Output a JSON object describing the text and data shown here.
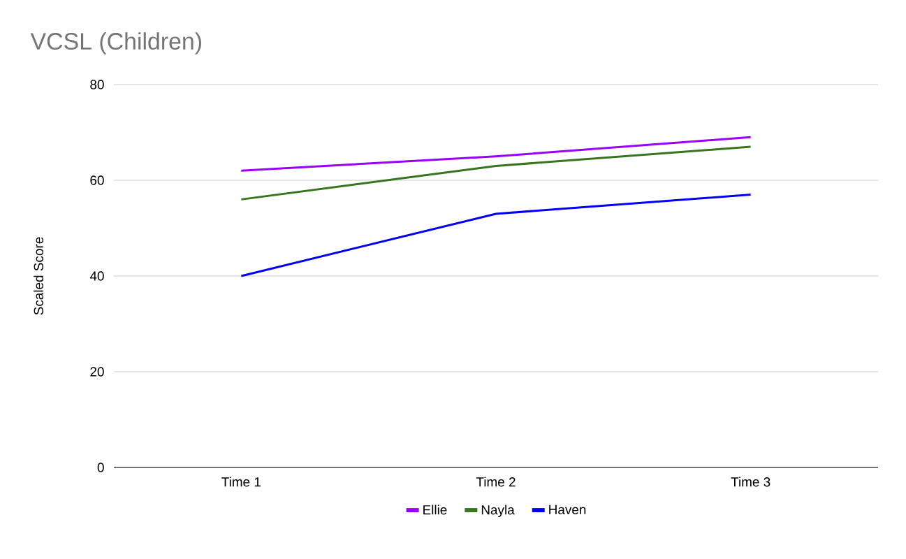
{
  "chart_data": {
    "type": "line",
    "title": "VCSL (Children)",
    "ylabel": "Scaled Score",
    "categories": [
      "Time 1",
      "Time 2",
      "Time 3"
    ],
    "series": [
      {
        "name": "Ellie",
        "color": "#9900ff",
        "values": [
          62,
          65,
          69
        ]
      },
      {
        "name": "Nayla",
        "color": "#38761d",
        "values": [
          56,
          63,
          67
        ]
      },
      {
        "name": "Haven",
        "color": "#0000ff",
        "values": [
          40,
          53,
          57
        ]
      }
    ],
    "ylim": [
      0,
      80
    ],
    "yticks": [
      0,
      20,
      40,
      60,
      80
    ],
    "grid": "y",
    "legend": "bottom",
    "marker": "none",
    "line_style": "solid"
  }
}
